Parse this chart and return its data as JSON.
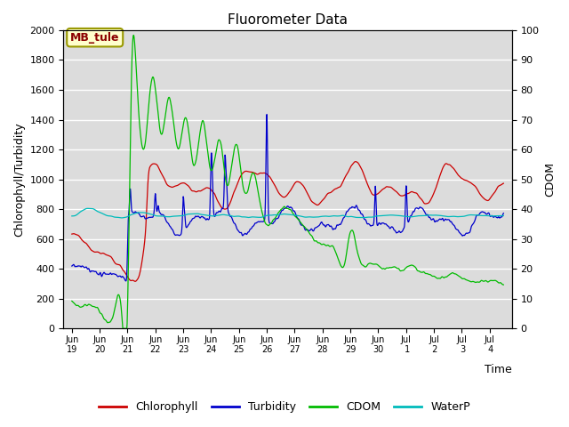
{
  "title": "Fluorometer Data",
  "xlabel": "Time",
  "ylabel_left": "Chlorophyll/Turbidity",
  "ylabel_right": "CDOM",
  "ylim_left": [
    0,
    2000
  ],
  "ylim_right": [
    0,
    100
  ],
  "annotation_text": "MB_tule",
  "annotation_color": "#8B0000",
  "annotation_bg": "#FFFFCC",
  "annotation_border": "#999900",
  "bg_color": "#DCDCDC",
  "grid_color": "#FFFFFF",
  "line_colors": {
    "Chlorophyll": "#CC0000",
    "Turbidity": "#0000CC",
    "CDOM": "#00BB00",
    "WaterP": "#00BBBB"
  },
  "tick_labels": [
    "Jun\n19",
    "Jun\n20",
    "Jun\n21",
    "Jun\n22",
    "Jun\n23",
    "Jun\n24",
    "Jun\n25",
    "Jun\n26",
    "Jun\n27",
    "Jun\n28",
    "Jun\n29",
    "Jun\n30",
    "Jul\n 1",
    "Jul\n 2",
    "Jul\n 3",
    "Jul\n 4"
  ],
  "figsize": [
    6.4,
    4.8
  ],
  "dpi": 100
}
